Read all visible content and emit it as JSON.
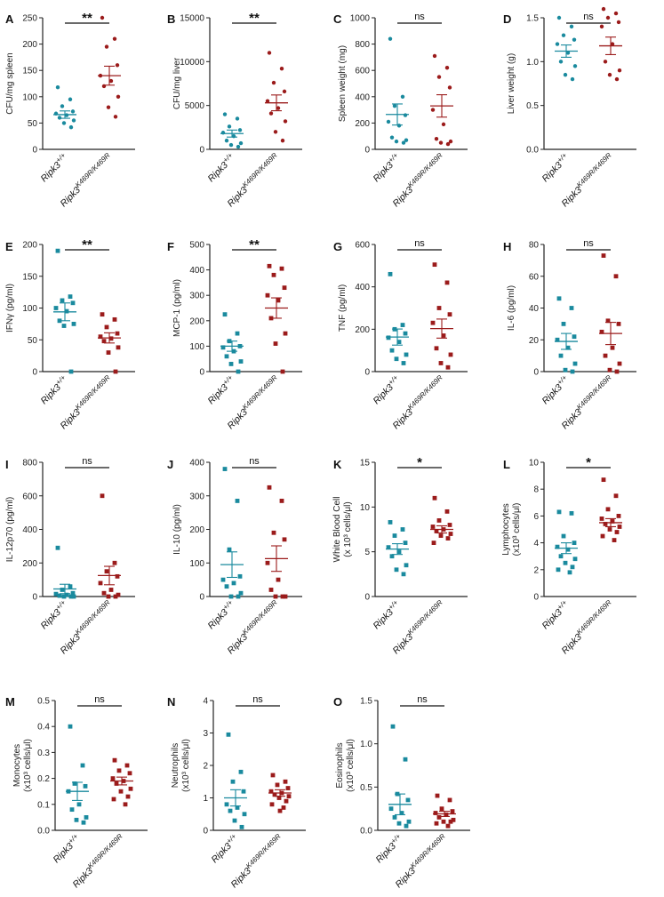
{
  "figure": {
    "group_labels": [
      "Ripk3",
      "Ripk3"
    ],
    "group_superscripts": [
      "+/+",
      "K469R/K469R"
    ],
    "colors": {
      "wt": "#1a8a9e",
      "mut": "#9b1b1b",
      "axis": "#222222"
    }
  },
  "chart_data": [
    {
      "type": "scatter",
      "panel": "A",
      "ylabel": "CFU/mg spleen",
      "ylim": [
        0,
        250
      ],
      "yticks": [
        "0",
        "50",
        "100",
        "150",
        "200",
        "250"
      ],
      "yvals": [
        0,
        50,
        100,
        150,
        200,
        250
      ],
      "sig": "**",
      "marker": "circle",
      "series": [
        {
          "name": "Ripk3+/+",
          "values": [
            118,
            95,
            82,
            72,
            68,
            65,
            60,
            55,
            50,
            42
          ],
          "mean": 66,
          "sem": 7
        },
        {
          "name": "Ripk3K469R/K469R",
          "values": [
            250,
            210,
            195,
            160,
            140,
            130,
            120,
            100,
            80,
            62
          ],
          "mean": 140,
          "sem": 18
        }
      ]
    },
    {
      "type": "scatter",
      "panel": "B",
      "ylabel": "CFU/mg liver",
      "ylim": [
        0,
        15000
      ],
      "yticks": [
        "0",
        "5000",
        "10000",
        "15000"
      ],
      "yvals": [
        0,
        5000,
        10000,
        15000
      ],
      "sig": "**",
      "marker": "circle",
      "series": [
        {
          "name": "Ripk3+/+",
          "values": [
            4000,
            3500,
            2600,
            2200,
            1900,
            1500,
            1000,
            700,
            500,
            300
          ],
          "mean": 1800,
          "sem": 400
        },
        {
          "name": "Ripk3K469R/K469R",
          "values": [
            11000,
            9200,
            7600,
            6600,
            5500,
            4700,
            4100,
            3200,
            2000,
            1000
          ],
          "mean": 5300,
          "sem": 900
        }
      ]
    },
    {
      "type": "scatter",
      "panel": "C",
      "ylabel": "Spleen weight (mg)",
      "ylim": [
        0,
        1000
      ],
      "yticks": [
        "0",
        "200",
        "400",
        "600",
        "800",
        "1000"
      ],
      "yvals": [
        0,
        200,
        400,
        600,
        800,
        1000
      ],
      "sig": "ns",
      "marker": "circle",
      "series": [
        {
          "name": "Ripk3+/+",
          "values": [
            840,
            400,
            330,
            260,
            210,
            180,
            90,
            70,
            60,
            50
          ],
          "mean": 265,
          "sem": 80
        },
        {
          "name": "Ripk3K469R/K469R",
          "values": [
            710,
            620,
            550,
            470,
            300,
            190,
            80,
            60,
            50,
            40
          ],
          "mean": 330,
          "sem": 85
        }
      ]
    },
    {
      "type": "scatter",
      "panel": "D",
      "ylabel": "Liver weight (g)",
      "ylim": [
        0,
        1.5
      ],
      "yticks": [
        "0.0",
        "0.5",
        "1.0",
        "1.5"
      ],
      "yvals": [
        0,
        0.5,
        1.0,
        1.5
      ],
      "sig": "ns",
      "marker": "circle",
      "series": [
        {
          "name": "Ripk3+/+",
          "values": [
            1.5,
            1.4,
            1.3,
            1.25,
            1.2,
            1.1,
            1.0,
            0.95,
            0.85,
            0.8
          ],
          "mean": 1.12,
          "sem": 0.07
        },
        {
          "name": "Ripk3K469R/K469R",
          "values": [
            1.6,
            1.55,
            1.5,
            1.45,
            1.4,
            1.2,
            1.0,
            0.9,
            0.85,
            0.8
          ],
          "mean": 1.18,
          "sem": 0.1
        }
      ]
    },
    {
      "type": "scatter",
      "panel": "E",
      "ylabel": "IFNγ (pg/ml)",
      "ylim": [
        0,
        200
      ],
      "yticks": [
        "0",
        "50",
        "100",
        "150",
        "200"
      ],
      "yvals": [
        0,
        50,
        100,
        150,
        200
      ],
      "sig": "**",
      "marker": "square",
      "series": [
        {
          "name": "Ripk3+/+",
          "values": [
            190,
            118,
            112,
            108,
            100,
            95,
            80,
            75,
            72,
            0
          ],
          "mean": 94,
          "sem": 14
        },
        {
          "name": "Ripk3K469R/K469R",
          "values": [
            90,
            82,
            70,
            60,
            55,
            52,
            48,
            38,
            30,
            0
          ],
          "mean": 53,
          "sem": 8
        }
      ]
    },
    {
      "type": "scatter",
      "panel": "F",
      "ylabel": "MCP-1 (pg/ml)",
      "ylim": [
        0,
        500
      ],
      "yticks": [
        "0",
        "100",
        "200",
        "300",
        "400",
        "500"
      ],
      "yvals": [
        0,
        100,
        200,
        300,
        400,
        500
      ],
      "sig": "**",
      "marker": "square",
      "series": [
        {
          "name": "Ripk3+/+",
          "values": [
            225,
            150,
            120,
            100,
            95,
            80,
            60,
            40,
            30,
            0
          ],
          "mean": 100,
          "sem": 20
        },
        {
          "name": "Ripk3K469R/K469R",
          "values": [
            415,
            405,
            380,
            330,
            300,
            280,
            210,
            150,
            110,
            0
          ],
          "mean": 250,
          "sem": 40
        }
      ]
    },
    {
      "type": "scatter",
      "panel": "G",
      "ylabel": "TNF (pg/ml)",
      "ylim": [
        0,
        600
      ],
      "yticks": [
        "0",
        "200",
        "400",
        "600"
      ],
      "yvals": [
        0,
        200,
        400,
        600
      ],
      "sig": "ns",
      "marker": "square",
      "series": [
        {
          "name": "Ripk3+/+",
          "values": [
            460,
            220,
            200,
            180,
            160,
            140,
            100,
            80,
            60,
            40
          ],
          "mean": 163,
          "sem": 38
        },
        {
          "name": "Ripk3K469R/K469R",
          "values": [
            505,
            420,
            300,
            270,
            230,
            170,
            110,
            80,
            40,
            20
          ],
          "mean": 203,
          "sem": 45
        }
      ]
    },
    {
      "type": "scatter",
      "panel": "H",
      "ylabel": "IL-6 (pg/ml)",
      "ylim": [
        0,
        80
      ],
      "yticks": [
        "0",
        "20",
        "40",
        "60",
        "80"
      ],
      "yvals": [
        0,
        20,
        40,
        60,
        80
      ],
      "sig": "ns",
      "marker": "square",
      "series": [
        {
          "name": "Ripk3+/+",
          "values": [
            46,
            40,
            30,
            22,
            20,
            15,
            10,
            5,
            1,
            0
          ],
          "mean": 19,
          "sem": 5
        },
        {
          "name": "Ripk3K469R/K469R",
          "values": [
            73,
            60,
            32,
            30,
            25,
            15,
            10,
            5,
            1,
            0
          ],
          "mean": 24,
          "sem": 7
        }
      ]
    },
    {
      "type": "scatter",
      "panel": "I",
      "ylabel": "IL-12p70 (pg/ml)",
      "ylim": [
        0,
        800
      ],
      "yticks": [
        "0",
        "200",
        "400",
        "600",
        "800"
      ],
      "yvals": [
        0,
        200,
        400,
        600,
        800
      ],
      "sig": "ns",
      "marker": "square",
      "series": [
        {
          "name": "Ripk3+/+",
          "values": [
            290,
            60,
            40,
            20,
            15,
            10,
            5,
            0,
            0,
            0
          ],
          "mean": 45,
          "sem": 28
        },
        {
          "name": "Ripk3K469R/K469R",
          "values": [
            600,
            200,
            150,
            120,
            80,
            40,
            20,
            10,
            0,
            0
          ],
          "mean": 125,
          "sem": 55
        }
      ]
    },
    {
      "type": "scatter",
      "panel": "J",
      "ylabel": "IL-10 (pg/ml)",
      "ylim": [
        0,
        400
      ],
      "yticks": [
        "0",
        "100",
        "200",
        "300",
        "400"
      ],
      "yvals": [
        0,
        100,
        200,
        300,
        400
      ],
      "sig": "ns",
      "marker": "square",
      "series": [
        {
          "name": "Ripk3+/+",
          "values": [
            380,
            285,
            140,
            60,
            50,
            40,
            30,
            10,
            0,
            0
          ],
          "mean": 95,
          "sem": 38
        },
        {
          "name": "Ripk3K469R/K469R",
          "values": [
            325,
            285,
            190,
            170,
            100,
            50,
            20,
            0,
            0,
            0
          ],
          "mean": 113,
          "sem": 38
        }
      ]
    },
    {
      "type": "scatter",
      "panel": "K",
      "ylabel": "White Blood Cell (x 10³ cells/μl)",
      "ylim": [
        0,
        15
      ],
      "yticks": [
        "0",
        "5",
        "10",
        "15"
      ],
      "yvals": [
        0,
        5,
        10,
        15
      ],
      "sig": "*",
      "marker": "square",
      "series": [
        {
          "name": "Ripk3+/+",
          "values": [
            8.3,
            7.5,
            6.8,
            6.0,
            5.5,
            5.0,
            4.5,
            3.5,
            3.0,
            2.5
          ],
          "mean": 5.3,
          "sem": 0.6
        },
        {
          "name": "Ripk3K469R/K469R",
          "values": [
            11.0,
            9.5,
            8.5,
            8.0,
            7.8,
            7.5,
            7.3,
            7.0,
            6.8,
            6.5,
            6.0
          ],
          "mean": 7.5,
          "sem": 0.4
        }
      ]
    },
    {
      "type": "scatter",
      "panel": "L",
      "ylabel": "Lymphocytes (x10³ cells/μl)",
      "ylim": [
        0,
        10
      ],
      "yticks": [
        "0",
        "2",
        "4",
        "6",
        "8",
        "10"
      ],
      "yvals": [
        0,
        2,
        4,
        6,
        8,
        10
      ],
      "sig": "*",
      "marker": "square",
      "series": [
        {
          "name": "Ripk3+/+",
          "values": [
            6.3,
            6.2,
            4.5,
            4.0,
            3.7,
            3.5,
            3.0,
            2.8,
            2.5,
            2.2,
            2.0,
            1.8
          ],
          "mean": 3.6,
          "sem": 0.4
        },
        {
          "name": "Ripk3K469R/K469R",
          "values": [
            8.7,
            7.5,
            6.5,
            6.0,
            5.8,
            5.6,
            5.4,
            5.2,
            5.0,
            4.8,
            4.5,
            4.2
          ],
          "mean": 5.5,
          "sem": 0.3
        }
      ]
    },
    {
      "type": "scatter",
      "panel": "M",
      "ylabel": "Monocytes (x10³ cells/μl)",
      "ylim": [
        0,
        0.5
      ],
      "yticks": [
        "0.0",
        "0.1",
        "0.2",
        "0.3",
        "0.4",
        "0.5"
      ],
      "yvals": [
        0,
        0.1,
        0.2,
        0.3,
        0.4,
        0.5
      ],
      "sig": "ns",
      "marker": "square",
      "series": [
        {
          "name": "Ripk3+/+",
          "values": [
            0.4,
            0.25,
            0.18,
            0.17,
            0.15,
            0.1,
            0.08,
            0.05,
            0.04,
            0.03
          ],
          "mean": 0.15,
          "sem": 0.035
        },
        {
          "name": "Ripk3K469R/K469R",
          "values": [
            0.27,
            0.25,
            0.23,
            0.22,
            0.2,
            0.19,
            0.18,
            0.16,
            0.15,
            0.13,
            0.12,
            0.1
          ],
          "mean": 0.19,
          "sem": 0.015
        }
      ]
    },
    {
      "type": "scatter",
      "panel": "N",
      "ylabel": "Neutrophils (x10³ cells/μl)",
      "ylim": [
        0,
        4
      ],
      "yticks": [
        "0",
        "1",
        "2",
        "3",
        "4"
      ],
      "yvals": [
        0,
        1,
        2,
        3,
        4
      ],
      "sig": "ns",
      "marker": "square",
      "series": [
        {
          "name": "Ripk3+/+",
          "values": [
            2.95,
            1.8,
            1.5,
            1.2,
            0.8,
            0.7,
            0.6,
            0.5,
            0.3,
            0.1
          ],
          "mean": 1.0,
          "sem": 0.25
        },
        {
          "name": "Ripk3K469R/K469R",
          "values": [
            1.7,
            1.5,
            1.4,
            1.3,
            1.2,
            1.15,
            1.1,
            1.05,
            1.0,
            0.9,
            0.8,
            0.7,
            0.6
          ],
          "mean": 1.15,
          "sem": 0.1
        }
      ]
    },
    {
      "type": "scatter",
      "panel": "O",
      "ylabel": "Eosinophils (x10³ cells/μl)",
      "ylim": [
        0,
        1.5
      ],
      "yticks": [
        "0.0",
        "0.5",
        "1.0",
        "1.5"
      ],
      "yvals": [
        0,
        0.5,
        1.0,
        1.5
      ],
      "sig": "ns",
      "marker": "square",
      "series": [
        {
          "name": "Ripk3+/+",
          "values": [
            1.2,
            0.82,
            0.42,
            0.35,
            0.25,
            0.2,
            0.15,
            0.1,
            0.08,
            0.05
          ],
          "mean": 0.3,
          "sem": 0.12
        },
        {
          "name": "Ripk3K469R/K469R",
          "values": [
            0.4,
            0.35,
            0.25,
            0.22,
            0.2,
            0.18,
            0.15,
            0.12,
            0.1,
            0.1,
            0.08,
            0.05
          ],
          "mean": 0.19,
          "sem": 0.03
        }
      ]
    }
  ]
}
